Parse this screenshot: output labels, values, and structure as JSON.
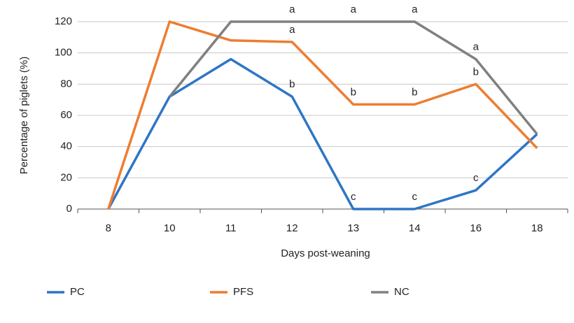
{
  "chart_data": {
    "type": "line",
    "y_label": "Percentage of piglets (%)",
    "x_label": "Days post-weaning",
    "categories": [
      "8",
      "10",
      "11",
      "12",
      "13",
      "14",
      "16",
      "18"
    ],
    "ylim": [
      0,
      120
    ],
    "yticks": [
      0,
      20,
      40,
      60,
      80,
      100,
      120
    ],
    "grid": true,
    "series": [
      {
        "name": "PC",
        "color": "#2e75c6",
        "values": [
          0,
          72,
          96,
          72,
          0,
          0,
          12,
          48
        ]
      },
      {
        "name": "PFS",
        "color": "#ed7d31",
        "values": [
          0,
          120,
          108,
          107,
          67,
          67,
          80,
          39
        ]
      },
      {
        "name": "NC",
        "color": "#808080",
        "values": [
          null,
          72,
          120,
          120,
          120,
          120,
          96,
          48
        ]
      }
    ],
    "annotations": [
      {
        "text": "a",
        "x": "12",
        "series": "NC"
      },
      {
        "text": "a",
        "x": "13",
        "series": "NC"
      },
      {
        "text": "a",
        "x": "14",
        "series": "NC"
      },
      {
        "text": "a",
        "x": "16",
        "series": "NC"
      },
      {
        "text": "a",
        "x": "12",
        "series": "PFS"
      },
      {
        "text": "b",
        "x": "13",
        "series": "PFS"
      },
      {
        "text": "b",
        "x": "14",
        "series": "PFS"
      },
      {
        "text": "b",
        "x": "16",
        "series": "PFS"
      },
      {
        "text": "b",
        "x": "12",
        "series": "PC"
      },
      {
        "text": "c",
        "x": "13",
        "series": "PC"
      },
      {
        "text": "c",
        "x": "14",
        "series": "PC"
      },
      {
        "text": "c",
        "x": "16",
        "series": "PC"
      }
    ]
  }
}
